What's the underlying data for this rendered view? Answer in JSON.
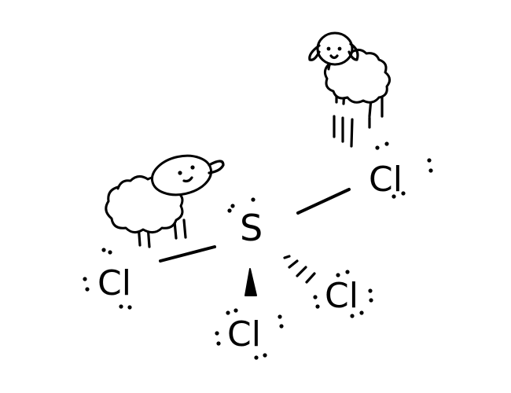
{
  "molecule": {
    "central_atom": {
      "symbol": "S"
    },
    "ligands": [
      {
        "symbol": "Cl",
        "bond": "single"
      },
      {
        "symbol": "Cl",
        "bond": "single"
      },
      {
        "symbol": "Cl",
        "bond": "wedge"
      },
      {
        "symbol": "Cl",
        "bond": "hashed"
      }
    ]
  },
  "decorations": {
    "sheep_left": "sheep-icon",
    "sheep_top": "sheep-icon"
  },
  "colors": {
    "ink": "#000000",
    "background": "#ffffff"
  }
}
